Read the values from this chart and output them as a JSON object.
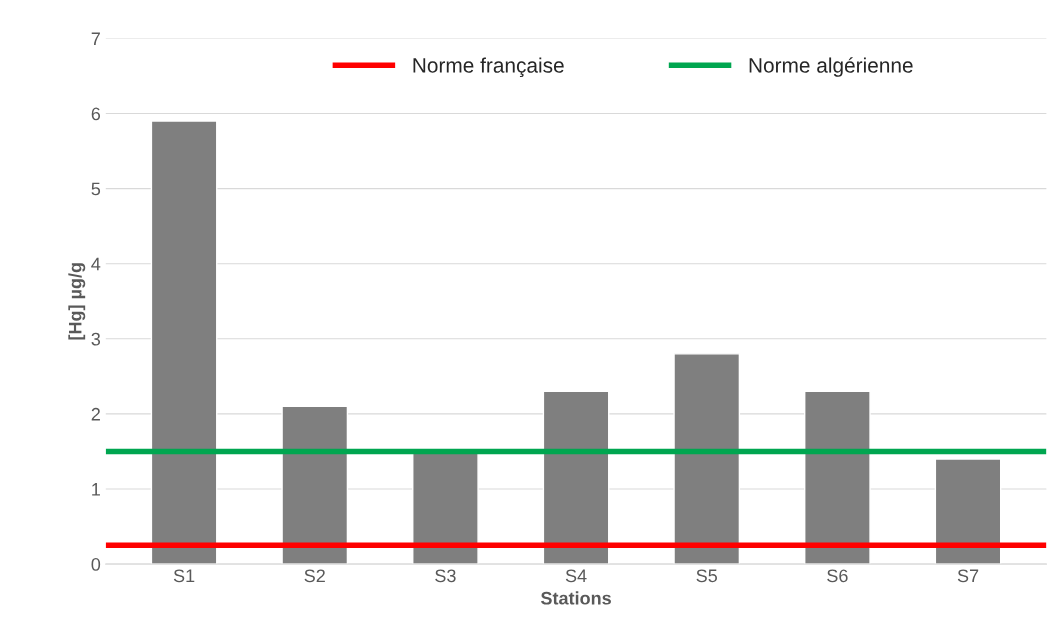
{
  "chart_data": {
    "type": "bar",
    "xlabel": "Stations",
    "ylabel": "[Hg] µg/g",
    "categories": [
      "S1",
      "S2",
      "S3",
      "S4",
      "S5",
      "S6",
      "S7"
    ],
    "values": [
      5.9,
      2.1,
      1.5,
      2.3,
      2.8,
      2.3,
      1.4
    ],
    "color": "#7f7f7f",
    "ylim": [
      0,
      7
    ],
    "yticks": [
      0,
      1,
      2,
      3,
      4,
      5,
      6,
      7
    ],
    "grid": "y",
    "legend": "top",
    "ref_lines": [
      {
        "axis": "y",
        "value": 0.25,
        "label": "Norme française",
        "color": "#ff0000",
        "line_style": "solid"
      },
      {
        "axis": "y",
        "value": 1.5,
        "label": "Norme algérienne",
        "color": "#00a650",
        "line_style": "solid"
      }
    ]
  }
}
